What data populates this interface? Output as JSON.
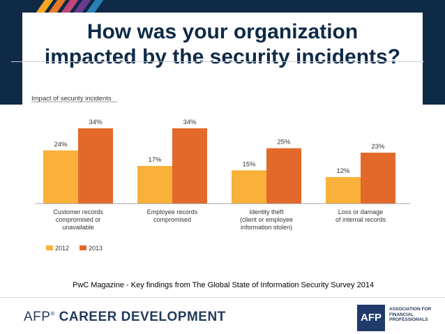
{
  "slide": {
    "title_line1": "How was your organization",
    "title_line2": "impacted by the security incidents?",
    "source": "PwC Magazine - Key findings from The Global State of Information Security Survey 2014"
  },
  "footer": {
    "brand_prefix": "AFP",
    "brand_reg": "®",
    "brand_main": "CAREER DEVELOPMENT",
    "logo_text": "AFP",
    "assoc_line1": "ASSOCIATION FOR",
    "assoc_line2": "FINANCIAL",
    "assoc_line3": "PROFESSIONALS"
  },
  "colors": {
    "navy": "#0e2a46",
    "stripes": [
      "#f5a623",
      "#e8792a",
      "#c0457a",
      "#6c3b8e",
      "#2b7fb8"
    ]
  },
  "chart_data": {
    "type": "bar",
    "title": "Impact of security incidents",
    "categories": [
      [
        "Customer records",
        "compromised or",
        "unavailable"
      ],
      [
        "Employee records",
        "compromised"
      ],
      [
        "Identity theft",
        "(client or employee",
        "information stolen)"
      ],
      [
        "Loss or damage",
        "of internal records"
      ]
    ],
    "series": [
      {
        "name": "2012",
        "color": "#f9b13a",
        "values": [
          24,
          17,
          15,
          12
        ],
        "labels": [
          "24%",
          "17%",
          "15%",
          "12%"
        ]
      },
      {
        "name": "2013",
        "color": "#e2692a",
        "values": [
          34,
          34,
          25,
          23
        ],
        "labels": [
          "34%",
          "34%",
          "25%",
          "23%"
        ]
      }
    ],
    "ylim": [
      0,
      34
    ],
    "grid": false,
    "legend": "bottom-left"
  }
}
